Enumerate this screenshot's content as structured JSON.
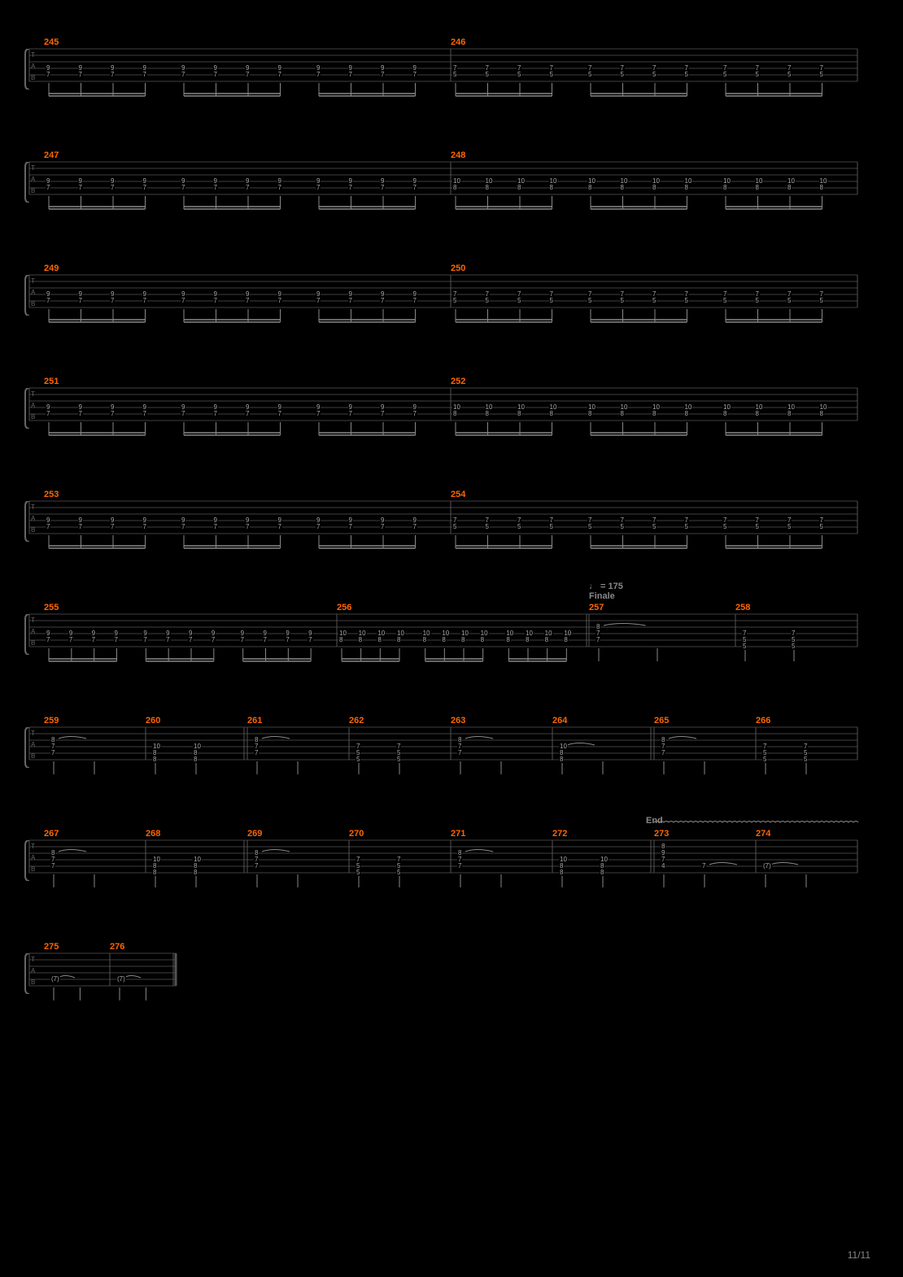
{
  "page_number": "11/11",
  "background_color": "#000000",
  "staff_line_color": "#555555",
  "measure_number_color": "#ff6600",
  "fret_number_color": "#aaaaaa",
  "label_color": "#888888",
  "bracket_color": "#666666",
  "beam_color": "#888888",
  "string_count": 6,
  "string_spacing": 8,
  "tab_labels": [
    "T",
    "A",
    "B"
  ],
  "tempo_marking": "♩ = 175",
  "section_name": "Finale",
  "end_text": "End",
  "systems": [
    {
      "measures": [
        {
          "number": "245",
          "width": 0.5,
          "beat_groups": 3,
          "notes_per_group": 4,
          "columns": [
            {
              "frets": [
                {
                  "s": 3,
                  "f": "9"
                },
                {
                  "s": 4,
                  "f": "7"
                }
              ]
            }
          ],
          "repeat_cols": 12
        },
        {
          "number": "246",
          "width": 0.5,
          "beat_groups": 3,
          "notes_per_group": 4,
          "columns": [
            {
              "frets": [
                {
                  "s": 3,
                  "f": "7"
                },
                {
                  "s": 4,
                  "f": "5"
                }
              ]
            }
          ],
          "repeat_cols": 12
        }
      ]
    },
    {
      "measures": [
        {
          "number": "247",
          "width": 0.5,
          "beat_groups": 3,
          "notes_per_group": 4,
          "columns": [
            {
              "frets": [
                {
                  "s": 3,
                  "f": "9"
                },
                {
                  "s": 4,
                  "f": "7"
                }
              ]
            }
          ],
          "repeat_cols": 12
        },
        {
          "number": "248",
          "width": 0.5,
          "beat_groups": 3,
          "notes_per_group": 4,
          "columns": [
            {
              "frets": [
                {
                  "s": 3,
                  "f": "10"
                },
                {
                  "s": 4,
                  "f": "8"
                }
              ]
            }
          ],
          "repeat_cols": 12
        }
      ]
    },
    {
      "measures": [
        {
          "number": "249",
          "width": 0.5,
          "beat_groups": 3,
          "notes_per_group": 4,
          "columns": [
            {
              "frets": [
                {
                  "s": 3,
                  "f": "9"
                },
                {
                  "s": 4,
                  "f": "7"
                }
              ]
            }
          ],
          "repeat_cols": 12
        },
        {
          "number": "250",
          "width": 0.5,
          "beat_groups": 3,
          "notes_per_group": 4,
          "columns": [
            {
              "frets": [
                {
                  "s": 3,
                  "f": "7"
                },
                {
                  "s": 4,
                  "f": "5"
                }
              ]
            }
          ],
          "repeat_cols": 12
        }
      ]
    },
    {
      "measures": [
        {
          "number": "251",
          "width": 0.5,
          "beat_groups": 3,
          "notes_per_group": 4,
          "columns": [
            {
              "frets": [
                {
                  "s": 3,
                  "f": "9"
                },
                {
                  "s": 4,
                  "f": "7"
                }
              ]
            }
          ],
          "repeat_cols": 12
        },
        {
          "number": "252",
          "width": 0.5,
          "beat_groups": 3,
          "notes_per_group": 4,
          "columns": [
            {
              "frets": [
                {
                  "s": 3,
                  "f": "10"
                },
                {
                  "s": 4,
                  "f": "8"
                }
              ]
            }
          ],
          "repeat_cols": 12
        }
      ]
    },
    {
      "measures": [
        {
          "number": "253",
          "width": 0.5,
          "beat_groups": 3,
          "notes_per_group": 4,
          "columns": [
            {
              "frets": [
                {
                  "s": 3,
                  "f": "9"
                },
                {
                  "s": 4,
                  "f": "7"
                }
              ]
            }
          ],
          "repeat_cols": 12
        },
        {
          "number": "254",
          "width": 0.5,
          "beat_groups": 3,
          "notes_per_group": 4,
          "columns": [
            {
              "frets": [
                {
                  "s": 3,
                  "f": "7"
                },
                {
                  "s": 4,
                  "f": "5"
                }
              ]
            }
          ],
          "repeat_cols": 12
        }
      ]
    },
    {
      "tempo_before": 0.67,
      "measures": [
        {
          "number": "255",
          "width": 0.36,
          "beat_groups": 3,
          "notes_per_group": 4,
          "columns": [
            {
              "frets": [
                {
                  "s": 3,
                  "f": "9"
                },
                {
                  "s": 4,
                  "f": "7"
                }
              ]
            }
          ],
          "repeat_cols": 12
        },
        {
          "number": "256",
          "width": 0.31,
          "beat_groups": 3,
          "notes_per_group": 4,
          "columns": [
            {
              "frets": [
                {
                  "s": 3,
                  "f": "10"
                },
                {
                  "s": 4,
                  "f": "8"
                }
              ]
            }
          ],
          "repeat_cols": 12,
          "double_bar_end": true
        },
        {
          "number": "257",
          "width": 0.18,
          "chord_mode": true,
          "chord_cols": [
            {
              "frets": [
                {
                  "s": 2,
                  "f": "8"
                },
                {
                  "s": 3,
                  "f": "7"
                },
                {
                  "s": 4,
                  "f": "7"
                }
              ],
              "tie": true
            },
            {
              "frets": [],
              "stem_only": true
            }
          ]
        },
        {
          "number": "258",
          "width": 0.15,
          "chord_mode": true,
          "chord_cols": [
            {
              "frets": [
                {
                  "s": 3,
                  "f": "7"
                },
                {
                  "s": 4,
                  "f": "5"
                },
                {
                  "s": 5,
                  "f": "5"
                }
              ]
            },
            {
              "frets": [
                {
                  "s": 3,
                  "f": "7"
                },
                {
                  "s": 4,
                  "f": "5"
                },
                {
                  "s": 5,
                  "f": "5"
                }
              ]
            }
          ]
        }
      ]
    },
    {
      "measures": [
        {
          "number": "259",
          "width": 0.125,
          "chord_mode": true,
          "chord_cols": [
            {
              "frets": [
                {
                  "s": 2,
                  "f": "8"
                },
                {
                  "s": 3,
                  "f": "7"
                },
                {
                  "s": 4,
                  "f": "7"
                }
              ],
              "tie": true
            },
            {
              "frets": [],
              "stem_only": true
            }
          ]
        },
        {
          "number": "260",
          "width": 0.125,
          "chord_mode": true,
          "chord_cols": [
            {
              "frets": [
                {
                  "s": 3,
                  "f": "10"
                },
                {
                  "s": 4,
                  "f": "8"
                },
                {
                  "s": 5,
                  "f": "8"
                }
              ]
            },
            {
              "frets": [
                {
                  "s": 3,
                  "f": "10"
                },
                {
                  "s": 4,
                  "f": "8"
                },
                {
                  "s": 5,
                  "f": "8"
                }
              ]
            }
          ]
        },
        {
          "number": "261",
          "width": 0.125,
          "chord_mode": true,
          "double_bar_start": true,
          "chord_cols": [
            {
              "frets": [
                {
                  "s": 2,
                  "f": "8"
                },
                {
                  "s": 3,
                  "f": "7"
                },
                {
                  "s": 4,
                  "f": "7"
                }
              ],
              "tie": true
            },
            {
              "frets": [],
              "stem_only": true
            }
          ]
        },
        {
          "number": "262",
          "width": 0.125,
          "chord_mode": true,
          "chord_cols": [
            {
              "frets": [
                {
                  "s": 3,
                  "f": "7"
                },
                {
                  "s": 4,
                  "f": "5"
                },
                {
                  "s": 5,
                  "f": "5"
                }
              ]
            },
            {
              "frets": [
                {
                  "s": 3,
                  "f": "7"
                },
                {
                  "s": 4,
                  "f": "5"
                },
                {
                  "s": 5,
                  "f": "5"
                }
              ]
            }
          ]
        },
        {
          "number": "263",
          "width": 0.125,
          "chord_mode": true,
          "chord_cols": [
            {
              "frets": [
                {
                  "s": 2,
                  "f": "8"
                },
                {
                  "s": 3,
                  "f": "7"
                },
                {
                  "s": 4,
                  "f": "7"
                }
              ],
              "tie": true
            },
            {
              "frets": [],
              "stem_only": true
            }
          ]
        },
        {
          "number": "264",
          "width": 0.125,
          "chord_mode": true,
          "chord_cols": [
            {
              "frets": [
                {
                  "s": 3,
                  "f": "10"
                },
                {
                  "s": 4,
                  "f": "8"
                },
                {
                  "s": 5,
                  "f": "8"
                }
              ],
              "tie": true
            },
            {
              "frets": [],
              "stem_only": true
            }
          ]
        },
        {
          "number": "265",
          "width": 0.125,
          "chord_mode": true,
          "double_bar_start": true,
          "chord_cols": [
            {
              "frets": [
                {
                  "s": 2,
                  "f": "8"
                },
                {
                  "s": 3,
                  "f": "7"
                },
                {
                  "s": 4,
                  "f": "7"
                }
              ],
              "tie": true
            },
            {
              "frets": [],
              "stem_only": true
            }
          ]
        },
        {
          "number": "266",
          "width": 0.125,
          "chord_mode": true,
          "chord_cols": [
            {
              "frets": [
                {
                  "s": 3,
                  "f": "7"
                },
                {
                  "s": 4,
                  "f": "5"
                },
                {
                  "s": 5,
                  "f": "5"
                }
              ]
            },
            {
              "frets": [
                {
                  "s": 3,
                  "f": "7"
                },
                {
                  "s": 4,
                  "f": "5"
                },
                {
                  "s": 5,
                  "f": "5"
                }
              ]
            }
          ]
        }
      ]
    },
    {
      "end_marker": 0.74,
      "measures": [
        {
          "number": "267",
          "width": 0.125,
          "chord_mode": true,
          "chord_cols": [
            {
              "frets": [
                {
                  "s": 2,
                  "f": "8"
                },
                {
                  "s": 3,
                  "f": "7"
                },
                {
                  "s": 4,
                  "f": "7"
                }
              ],
              "tie": true
            },
            {
              "frets": [],
              "stem_only": true
            }
          ]
        },
        {
          "number": "268",
          "width": 0.125,
          "chord_mode": true,
          "chord_cols": [
            {
              "frets": [
                {
                  "s": 3,
                  "f": "10"
                },
                {
                  "s": 4,
                  "f": "8"
                },
                {
                  "s": 5,
                  "f": "8"
                }
              ]
            },
            {
              "frets": [
                {
                  "s": 3,
                  "f": "10"
                },
                {
                  "s": 4,
                  "f": "8"
                },
                {
                  "s": 5,
                  "f": "8"
                }
              ]
            }
          ]
        },
        {
          "number": "269",
          "width": 0.125,
          "chord_mode": true,
          "double_bar_start": true,
          "chord_cols": [
            {
              "frets": [
                {
                  "s": 2,
                  "f": "8"
                },
                {
                  "s": 3,
                  "f": "7"
                },
                {
                  "s": 4,
                  "f": "7"
                }
              ],
              "tie": true
            },
            {
              "frets": [],
              "stem_only": true
            }
          ]
        },
        {
          "number": "270",
          "width": 0.125,
          "chord_mode": true,
          "chord_cols": [
            {
              "frets": [
                {
                  "s": 3,
                  "f": "7"
                },
                {
                  "s": 4,
                  "f": "5"
                },
                {
                  "s": 5,
                  "f": "5"
                }
              ]
            },
            {
              "frets": [
                {
                  "s": 3,
                  "f": "7"
                },
                {
                  "s": 4,
                  "f": "5"
                },
                {
                  "s": 5,
                  "f": "5"
                }
              ]
            }
          ]
        },
        {
          "number": "271",
          "width": 0.125,
          "chord_mode": true,
          "chord_cols": [
            {
              "frets": [
                {
                  "s": 2,
                  "f": "8"
                },
                {
                  "s": 3,
                  "f": "7"
                },
                {
                  "s": 4,
                  "f": "7"
                }
              ],
              "tie": true
            },
            {
              "frets": [],
              "stem_only": true
            }
          ]
        },
        {
          "number": "272",
          "width": 0.125,
          "chord_mode": true,
          "chord_cols": [
            {
              "frets": [
                {
                  "s": 3,
                  "f": "10"
                },
                {
                  "s": 4,
                  "f": "8"
                },
                {
                  "s": 5,
                  "f": "8"
                }
              ]
            },
            {
              "frets": [
                {
                  "s": 3,
                  "f": "10"
                },
                {
                  "s": 4,
                  "f": "8"
                },
                {
                  "s": 5,
                  "f": "8"
                }
              ]
            }
          ]
        },
        {
          "number": "273",
          "width": 0.125,
          "chord_mode": true,
          "double_bar_start": true,
          "chord_cols": [
            {
              "frets": [
                {
                  "s": 1,
                  "f": "8"
                },
                {
                  "s": 2,
                  "f": "9"
                },
                {
                  "s": 3,
                  "f": "7"
                },
                {
                  "s": 4,
                  "f": "4"
                }
              ]
            },
            {
              "frets": [
                {
                  "s": 4,
                  "f": "7"
                }
              ],
              "tie": true
            }
          ],
          "trill": true
        },
        {
          "number": "274",
          "width": 0.125,
          "chord_mode": true,
          "chord_cols": [
            {
              "frets": [
                {
                  "s": 4,
                  "f": "(7)"
                }
              ],
              "tie": true
            },
            {
              "frets": [],
              "stem_only": true
            }
          ],
          "trill": true
        }
      ]
    },
    {
      "short": true,
      "measures": [
        {
          "number": "275",
          "width": 0.5,
          "chord_mode": true,
          "chord_cols": [
            {
              "frets": [
                {
                  "s": 4,
                  "f": "(7)"
                }
              ],
              "tie": true
            },
            {
              "frets": [],
              "stem_only": true
            }
          ]
        },
        {
          "number": "276",
          "width": 0.5,
          "chord_mode": true,
          "chord_cols": [
            {
              "frets": [
                {
                  "s": 4,
                  "f": "(7)"
                }
              ],
              "tie": true
            },
            {
              "frets": [],
              "stem_only": true
            }
          ],
          "final_bar": true
        }
      ]
    }
  ]
}
